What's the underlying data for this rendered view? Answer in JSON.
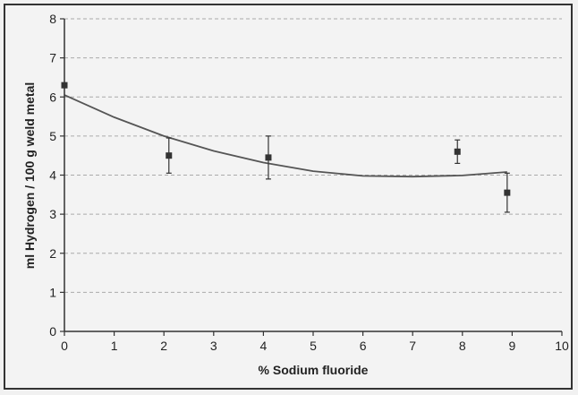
{
  "chart_data": {
    "type": "scatter",
    "title": "",
    "xlabel": "% Sodium fluoride",
    "ylabel": "ml Hydrogen / 100 g weld metal",
    "xlim": [
      0,
      10
    ],
    "ylim": [
      0,
      8
    ],
    "x_ticks": [
      "0",
      "1",
      "2",
      "3",
      "4",
      "5",
      "6",
      "7",
      "8",
      "9",
      "10"
    ],
    "y_ticks": [
      "0",
      "1",
      "2",
      "3",
      "4",
      "5",
      "6",
      "7",
      "8"
    ],
    "grid": "horizontal dashed",
    "points": [
      {
        "x": 0.0,
        "y": 6.3,
        "err": 0.0
      },
      {
        "x": 2.1,
        "y": 4.5,
        "err": 0.45
      },
      {
        "x": 4.1,
        "y": 4.45,
        "err": 0.55
      },
      {
        "x": 7.9,
        "y": 4.6,
        "err": 0.3
      },
      {
        "x": 8.9,
        "y": 3.55,
        "err": 0.5
      }
    ],
    "fit_curve": {
      "x": [
        0,
        1,
        2,
        3,
        4,
        5,
        6,
        7,
        8,
        8.9
      ],
      "y": [
        6.05,
        5.48,
        5.0,
        4.62,
        4.32,
        4.1,
        3.98,
        3.96,
        3.99,
        4.08
      ]
    },
    "colors": {
      "axis": "#333333",
      "grid": "#aaaaaa",
      "marker": "#333333",
      "curve": "#555555"
    }
  }
}
